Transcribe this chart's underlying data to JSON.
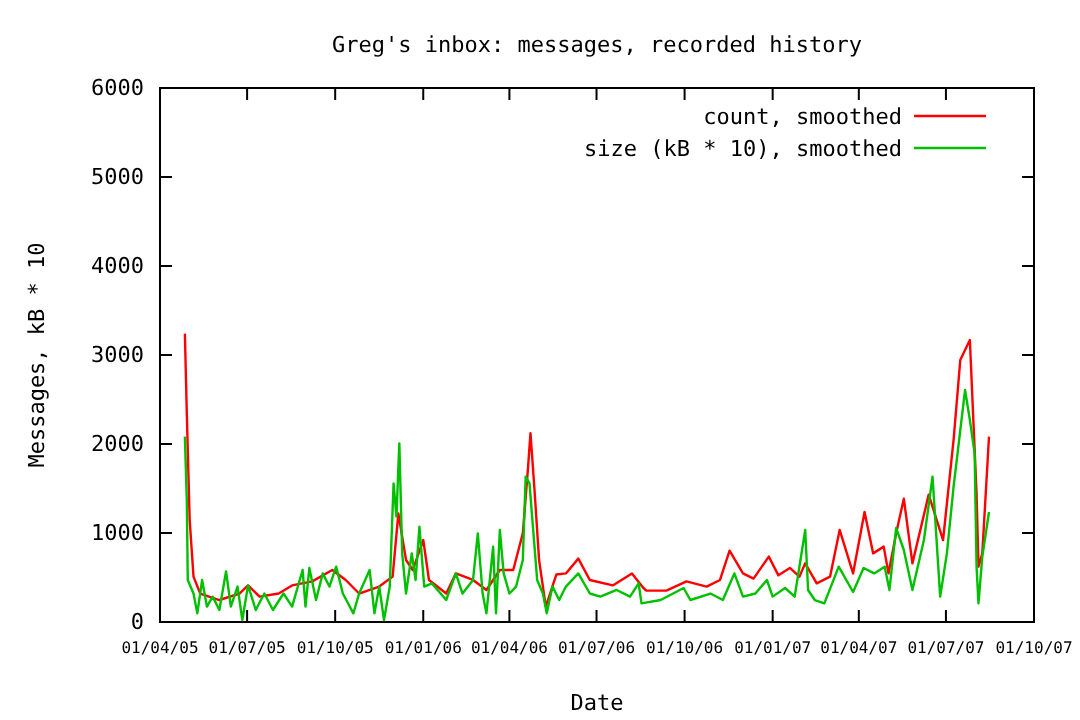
{
  "chart_data": {
    "type": "line",
    "title": "Greg's inbox: messages, recorded history",
    "xlabel": "Date",
    "ylabel": "Messages, kB * 10",
    "legend": "top right",
    "marker": "none",
    "line_style": "solid",
    "grid": false,
    "xlim": [
      "2005-04-01",
      "2007-10-01"
    ],
    "xticks": [
      {
        "value": "2005-04-01",
        "label": "01/04/05"
      },
      {
        "value": "2005-07-01",
        "label": "01/07/05"
      },
      {
        "value": "2005-10-01",
        "label": "01/10/05"
      },
      {
        "value": "2006-01-01",
        "label": "01/01/06"
      },
      {
        "value": "2006-04-01",
        "label": "01/04/06"
      },
      {
        "value": "2006-07-01",
        "label": "01/07/06"
      },
      {
        "value": "2006-10-01",
        "label": "01/10/06"
      },
      {
        "value": "2007-01-01",
        "label": "01/01/07"
      },
      {
        "value": "2007-04-01",
        "label": "01/04/07"
      },
      {
        "value": "2007-07-01",
        "label": "01/07/07"
      },
      {
        "value": "2007-10-01",
        "label": "01/10/07"
      }
    ],
    "ylim": [
      0,
      6000
    ],
    "yticks": [
      0,
      1000,
      2000,
      3000,
      4000,
      5000,
      6000
    ],
    "series": [
      {
        "name": "count, smoothed",
        "color": "#ff0000",
        "x": [
          "2005-04-27",
          "2005-04-29",
          "2005-05-02",
          "2005-05-06",
          "2005-05-13",
          "2005-06-02",
          "2005-06-23",
          "2005-07-02",
          "2005-07-14",
          "2005-08-03",
          "2005-08-17",
          "2005-09-07",
          "2005-09-28",
          "2005-10-12",
          "2005-10-26",
          "2005-11-16",
          "2005-11-30",
          "2005-12-06",
          "2005-12-14",
          "2005-12-21",
          "2006-01-01",
          "2006-01-07",
          "2006-01-25",
          "2006-02-04",
          "2006-02-22",
          "2006-03-08",
          "2006-03-22",
          "2006-04-05",
          "2006-04-15",
          "2006-04-20",
          "2006-04-23",
          "2006-04-27",
          "2006-05-02",
          "2006-05-09",
          "2006-05-20",
          "2006-05-30",
          "2006-06-12",
          "2006-06-24",
          "2006-07-18",
          "2006-08-07",
          "2006-08-19",
          "2006-08-22",
          "2006-09-12",
          "2006-10-03",
          "2006-10-24",
          "2006-11-07",
          "2006-11-17",
          "2006-12-01",
          "2006-12-12",
          "2006-12-28",
          "2007-01-07",
          "2007-01-19",
          "2007-01-29",
          "2007-02-04",
          "2007-02-16",
          "2007-03-02",
          "2007-03-12",
          "2007-03-26",
          "2007-04-07",
          "2007-04-16",
          "2007-04-27",
          "2007-05-02",
          "2007-05-10",
          "2007-05-18",
          "2007-05-27",
          "2007-06-13",
          "2007-06-28",
          "2007-07-09",
          "2007-07-16",
          "2007-07-26",
          "2007-08-02",
          "2007-08-04",
          "2007-08-08",
          "2007-08-15"
        ],
        "values": [
          3240,
          2345,
          1146,
          510,
          320,
          247,
          320,
          411,
          285,
          320,
          411,
          456,
          584,
          472,
          320,
          398,
          510,
          1220,
          697,
          584,
          921,
          472,
          320,
          546,
          472,
          360,
          584,
          584,
          996,
          1670,
          2120,
          1520,
          697,
          173,
          533,
          546,
          712,
          472,
          411,
          546,
          382,
          353,
          353,
          456,
          398,
          472,
          802,
          546,
          488,
          735,
          524,
          607,
          510,
          659,
          434,
          510,
          1034,
          546,
          1236,
          771,
          847,
          546,
          996,
          1386,
          659,
          1431,
          921,
          2045,
          2944,
          3169,
          1446,
          622,
          771,
          2083
        ]
      },
      {
        "name": "size (kB * 10), smoothed",
        "color": "#00c000",
        "x": [
          "2005-04-27",
          "2005-04-29",
          "2005-04-30",
          "2005-05-06",
          "2005-05-10",
          "2005-05-15",
          "2005-05-20",
          "2005-05-26",
          "2005-06-02",
          "2005-06-09",
          "2005-06-14",
          "2005-06-21",
          "2005-06-26",
          "2005-07-02",
          "2005-07-10",
          "2005-07-19",
          "2005-07-28",
          "2005-08-08",
          "2005-08-17",
          "2005-08-28",
          "2005-08-31",
          "2005-09-04",
          "2005-09-11",
          "2005-09-18",
          "2005-09-25",
          "2005-10-02",
          "2005-10-09",
          "2005-10-20",
          "2005-10-26",
          "2005-11-06",
          "2005-11-11",
          "2005-11-16",
          "2005-11-21",
          "2005-11-27",
          "2005-12-01",
          "2005-12-04",
          "2005-12-07",
          "2005-12-10",
          "2005-12-14",
          "2005-12-20",
          "2005-12-24",
          "2005-12-28",
          "2006-01-02",
          "2006-01-10",
          "2006-01-25",
          "2006-02-04",
          "2006-02-11",
          "2006-02-22",
          "2006-02-27",
          "2006-03-04",
          "2006-03-08",
          "2006-03-15",
          "2006-03-18",
          "2006-03-22",
          "2006-03-26",
          "2006-04-01",
          "2006-04-08",
          "2006-04-15",
          "2006-04-18",
          "2006-04-22",
          "2006-04-25",
          "2006-04-30",
          "2006-05-06",
          "2006-05-10",
          "2006-05-16",
          "2006-05-23",
          "2006-05-30",
          "2006-06-12",
          "2006-06-24",
          "2006-07-05",
          "2006-07-22",
          "2006-08-05",
          "2006-08-14",
          "2006-08-17",
          "2006-09-06",
          "2006-09-30",
          "2006-10-07",
          "2006-10-28",
          "2006-11-10",
          "2006-11-22",
          "2006-12-01",
          "2006-12-14",
          "2006-12-26",
          "2007-01-01",
          "2007-01-14",
          "2007-01-24",
          "2007-02-04",
          "2007-02-07",
          "2007-02-14",
          "2007-02-24",
          "2007-03-11",
          "2007-03-26",
          "2007-04-06",
          "2007-04-17",
          "2007-04-28",
          "2007-05-03",
          "2007-05-10",
          "2007-05-18",
          "2007-05-27",
          "2007-06-08",
          "2007-06-17",
          "2007-06-25",
          "2007-07-02",
          "2007-07-09",
          "2007-07-21",
          "2007-07-26",
          "2007-07-31",
          "2007-08-02",
          "2007-08-04",
          "2007-08-08",
          "2007-08-15"
        ],
        "values": [
          2083,
          1371,
          472,
          320,
          97,
          472,
          173,
          285,
          135,
          569,
          173,
          398,
          22,
          411,
          135,
          320,
          135,
          320,
          173,
          584,
          173,
          607,
          247,
          546,
          398,
          622,
          320,
          97,
          320,
          584,
          97,
          398,
          22,
          398,
          1557,
          1184,
          2007,
          771,
          320,
          771,
          472,
          1071,
          398,
          434,
          247,
          546,
          320,
          472,
          996,
          320,
          97,
          847,
          97,
          1034,
          546,
          320,
          398,
          697,
          1633,
          1557,
          1146,
          472,
          320,
          97,
          398,
          247,
          398,
          546,
          320,
          285,
          360,
          285,
          434,
          209,
          247,
          382,
          247,
          320,
          247,
          546,
          285,
          320,
          472,
          285,
          382,
          285,
          1034,
          360,
          247,
          209,
          622,
          337,
          607,
          546,
          622,
          360,
          1056,
          809,
          360,
          921,
          1633,
          285,
          771,
          1520,
          2607,
          2270,
          1895,
          622,
          209,
          735,
          1236
        ]
      }
    ]
  }
}
